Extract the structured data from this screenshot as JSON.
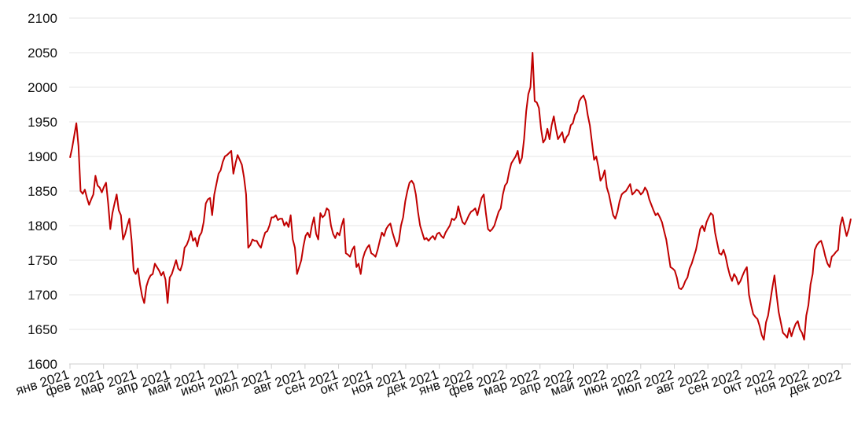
{
  "chart_data": {
    "type": "line",
    "title": "",
    "xlabel": "",
    "ylabel": "",
    "ylim": [
      1600,
      2100
    ],
    "yticks": [
      1600,
      1650,
      1700,
      1750,
      1800,
      1850,
      1900,
      1950,
      2000,
      2050,
      2100
    ],
    "grid": true,
    "legend": "none",
    "colors": {
      "line": "#c00000",
      "grid": "#e6e6e6",
      "axis": "#cfcfcf",
      "text": "#111111"
    },
    "x_tick_labels": [
      "янв 2021",
      "фев 2021",
      "мар 2021",
      "апр 2021",
      "май 2021",
      "июн 2021",
      "июл 2021",
      "авг 2021",
      "сен 2021",
      "окт 2021",
      "ноя 2021",
      "дек 2021",
      "янв 2022",
      "фев 2022",
      "мар 2022",
      "апр 2022",
      "май 2022",
      "июн 2022",
      "июл 2022",
      "авг 2022",
      "сен 2022",
      "окт 2022",
      "ноя 2022",
      "дек 2022"
    ],
    "series": [
      {
        "values": [
          1898,
          1912,
          1930,
          1948,
          1915,
          1850,
          1846,
          1852,
          1840,
          1830,
          1838,
          1845,
          1872,
          1858,
          1855,
          1848,
          1856,
          1862,
          1832,
          1795,
          1818,
          1832,
          1845,
          1822,
          1815,
          1780,
          1788,
          1800,
          1810,
          1780,
          1735,
          1730,
          1738,
          1715,
          1698,
          1688,
          1712,
          1722,
          1728,
          1730,
          1745,
          1740,
          1735,
          1728,
          1733,
          1722,
          1688,
          1725,
          1730,
          1740,
          1750,
          1738,
          1735,
          1745,
          1768,
          1772,
          1780,
          1792,
          1778,
          1782,
          1770,
          1785,
          1790,
          1805,
          1832,
          1838,
          1840,
          1815,
          1845,
          1860,
          1875,
          1880,
          1892,
          1900,
          1902,
          1905,
          1908,
          1875,
          1890,
          1902,
          1895,
          1888,
          1870,
          1845,
          1768,
          1772,
          1780,
          1778,
          1778,
          1772,
          1768,
          1780,
          1790,
          1792,
          1800,
          1812,
          1812,
          1815,
          1808,
          1810,
          1810,
          1800,
          1805,
          1798,
          1815,
          1780,
          1768,
          1730,
          1740,
          1750,
          1770,
          1785,
          1790,
          1783,
          1800,
          1812,
          1788,
          1780,
          1818,
          1812,
          1815,
          1825,
          1822,
          1800,
          1788,
          1782,
          1790,
          1786,
          1800,
          1810,
          1760,
          1758,
          1755,
          1765,
          1770,
          1740,
          1745,
          1730,
          1752,
          1762,
          1768,
          1772,
          1760,
          1758,
          1755,
          1765,
          1778,
          1790,
          1785,
          1795,
          1800,
          1803,
          1790,
          1780,
          1770,
          1778,
          1800,
          1812,
          1835,
          1850,
          1862,
          1865,
          1860,
          1845,
          1820,
          1800,
          1790,
          1780,
          1782,
          1778,
          1782,
          1785,
          1780,
          1788,
          1790,
          1785,
          1782,
          1790,
          1795,
          1800,
          1810,
          1808,
          1812,
          1828,
          1815,
          1805,
          1802,
          1808,
          1815,
          1820,
          1822,
          1825,
          1815,
          1828,
          1840,
          1845,
          1818,
          1795,
          1792,
          1795,
          1800,
          1810,
          1820,
          1825,
          1845,
          1858,
          1862,
          1878,
          1890,
          1895,
          1900,
          1908,
          1890,
          1898,
          1925,
          1965,
          1990,
          2000,
          2050,
          1980,
          1978,
          1970,
          1940,
          1920,
          1925,
          1940,
          1925,
          1945,
          1958,
          1940,
          1925,
          1930,
          1935,
          1920,
          1928,
          1932,
          1945,
          1948,
          1960,
          1965,
          1980,
          1985,
          1988,
          1980,
          1960,
          1945,
          1920,
          1895,
          1900,
          1885,
          1865,
          1870,
          1880,
          1855,
          1845,
          1830,
          1815,
          1810,
          1820,
          1835,
          1845,
          1848,
          1850,
          1855,
          1860,
          1845,
          1848,
          1852,
          1850,
          1845,
          1848,
          1855,
          1850,
          1838,
          1830,
          1822,
          1815,
          1818,
          1812,
          1805,
          1792,
          1780,
          1760,
          1740,
          1738,
          1735,
          1725,
          1710,
          1708,
          1712,
          1720,
          1725,
          1738,
          1745,
          1755,
          1765,
          1780,
          1795,
          1800,
          1792,
          1805,
          1812,
          1818,
          1815,
          1790,
          1775,
          1760,
          1758,
          1765,
          1755,
          1740,
          1728,
          1720,
          1730,
          1725,
          1715,
          1720,
          1728,
          1735,
          1740,
          1700,
          1685,
          1672,
          1668,
          1665,
          1655,
          1642,
          1635,
          1660,
          1670,
          1690,
          1710,
          1728,
          1700,
          1675,
          1660,
          1645,
          1642,
          1638,
          1652,
          1640,
          1650,
          1658,
          1662,
          1650,
          1645,
          1635,
          1670,
          1685,
          1715,
          1730,
          1765,
          1772,
          1776,
          1778,
          1768,
          1755,
          1745,
          1740,
          1755,
          1758,
          1762,
          1765,
          1800,
          1812,
          1798,
          1785,
          1795,
          1810
        ]
      }
    ]
  }
}
